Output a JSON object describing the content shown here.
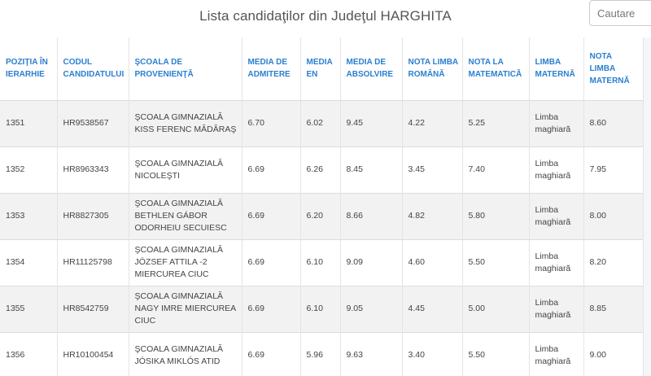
{
  "header": {
    "title": "Lista candidaţilor din Judeţul HARGHITA"
  },
  "search": {
    "placeholder": "Cautare"
  },
  "table": {
    "columns": [
      "POZIŢIA ÎN IERARHIE",
      "CODUL CANDIDATULUI",
      "ŞCOALA DE PROVENIENŢĂ",
      "MEDIA DE ADMITERE",
      "MEDIA EN",
      "MEDIA DE ABSOLVIRE",
      "NOTA LIMBA ROMÂNĂ",
      "NOTA LA MATEMATICĂ",
      "LIMBA MATERNĂ",
      "NOTA LIMBA MATERNĂ"
    ],
    "rows": [
      [
        "1351",
        "HR9538567",
        "ŞCOALA GIMNAZIALĂ KISS FERENC MĂDĂRAŞ",
        "6.70",
        "6.02",
        "9.45",
        "4.22",
        "5.25",
        "Limba maghiară",
        "8.60"
      ],
      [
        "1352",
        "HR8963343",
        "ŞCOALA GIMNAZIALĂ NICOLEŞTI",
        "6.69",
        "6.26",
        "8.45",
        "3.45",
        "7.40",
        "Limba maghiară",
        "7.95"
      ],
      [
        "1353",
        "HR8827305",
        "ŞCOALA GIMNAZIALĂ BETHLEN GÁBOR ODORHEIU SECUIESC",
        "6.69",
        "6.20",
        "8.66",
        "4.82",
        "5.80",
        "Limba maghiară",
        "8.00"
      ],
      [
        "1354",
        "HR11125798",
        "ŞCOALA GIMNAZIALĂ JÓZSEF ATTILA -2 MIERCUREA CIUC",
        "6.69",
        "6.10",
        "9.09",
        "4.60",
        "5.50",
        "Limba maghiară",
        "8.20"
      ],
      [
        "1355",
        "HR8542759",
        "ŞCOALA GIMNAZIALĂ NAGY IMRE MIERCUREA CIUC",
        "6.69",
        "6.10",
        "9.05",
        "4.45",
        "5.00",
        "Limba maghiară",
        "8.85"
      ],
      [
        "1356",
        "HR10100454",
        "ŞCOALA GIMNAZIALĂ JÓSIKA MIKLÓS ATID",
        "6.69",
        "5.96",
        "9.63",
        "3.40",
        "5.50",
        "Limba maghiară",
        "9.00"
      ]
    ]
  }
}
